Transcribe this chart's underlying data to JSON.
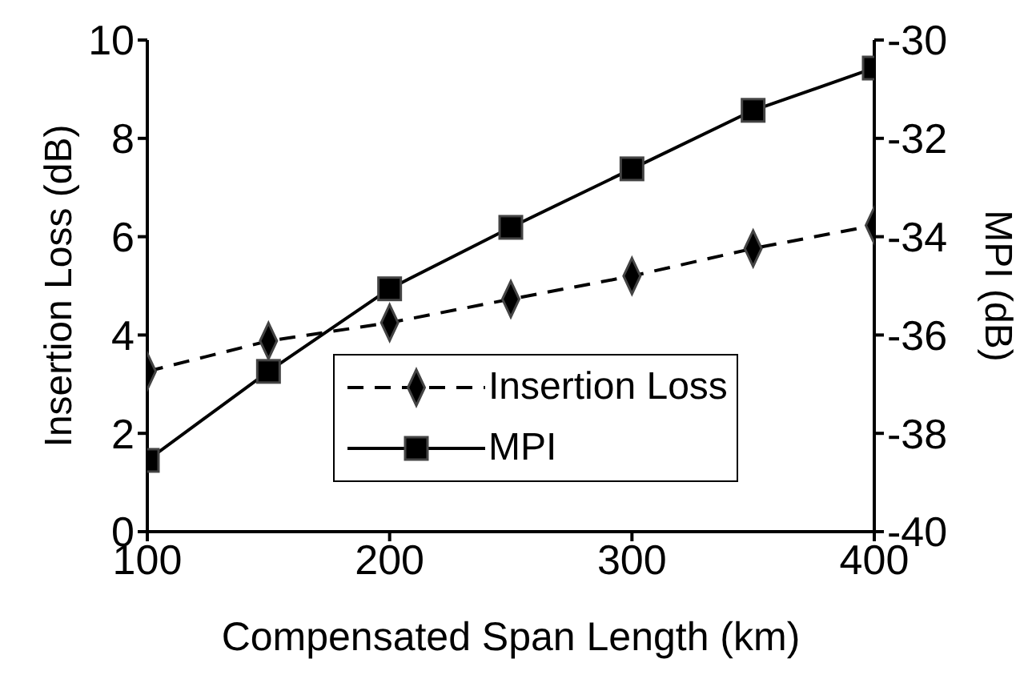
{
  "chart_data": {
    "type": "line",
    "xlabel": "Compensated Span Length (km)",
    "ylabel": "Insertion Loss (dB)",
    "y2label": "MPI (dB)",
    "x": [
      100,
      150,
      200,
      250,
      300,
      350,
      400
    ],
    "series": [
      {
        "name": "Insertion Loss",
        "color": "#000000",
        "marker": "diamond",
        "line_style": "dashed",
        "values": [
          3.26,
          3.88,
          4.25,
          4.73,
          5.2,
          5.76,
          6.23
        ]
      },
      {
        "name": "MPI",
        "color": "#000000",
        "marker": "square",
        "line_style": "solid",
        "axis": "y2",
        "values": [
          -38.55,
          -36.74,
          -35.06,
          -33.81,
          -32.62,
          -31.43,
          -30.57
        ]
      }
    ],
    "xlim": [
      100,
      400
    ],
    "xticks": [
      100,
      200,
      300,
      400
    ],
    "ylim": [
      0,
      10
    ],
    "yticks": [
      0,
      2,
      4,
      6,
      8,
      10
    ],
    "y2lim": [
      -40,
      -30
    ],
    "y2ticks": [
      -40,
      -38,
      -36,
      -34,
      -32,
      -30
    ],
    "grid": false,
    "legend": "bottom right"
  }
}
